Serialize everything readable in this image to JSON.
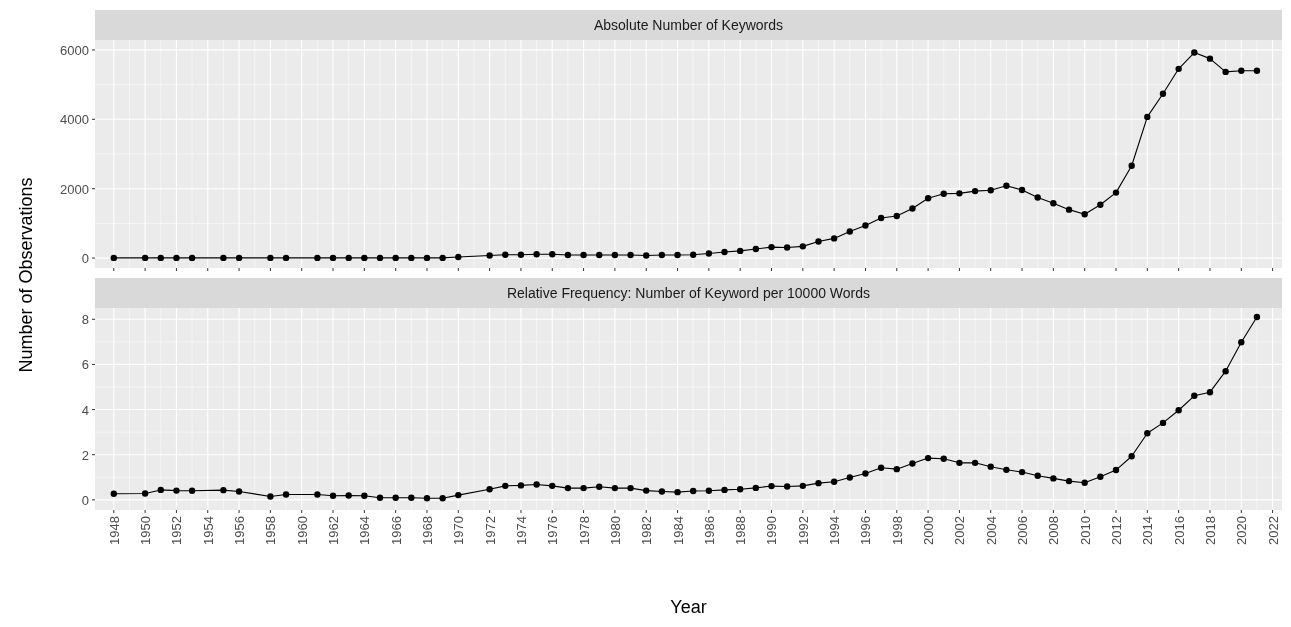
{
  "chart_data": [
    {
      "type": "line",
      "title": "Absolute Number of Keywords",
      "ylabel": "Number of Observations",
      "x": [
        1948,
        1950,
        1951,
        1952,
        1953,
        1955,
        1956,
        1958,
        1959,
        1961,
        1962,
        1963,
        1964,
        1965,
        1966,
        1967,
        1968,
        1969,
        1970,
        1972,
        1973,
        1974,
        1975,
        1976,
        1977,
        1978,
        1979,
        1980,
        1981,
        1982,
        1983,
        1984,
        1985,
        1986,
        1987,
        1988,
        1989,
        1990,
        1991,
        1992,
        1993,
        1994,
        1995,
        1996,
        1997,
        1998,
        1999,
        2000,
        2001,
        2002,
        2003,
        2004,
        2005,
        2006,
        2007,
        2008,
        2009,
        2010,
        2011,
        2012,
        2013,
        2014,
        2015,
        2016,
        2017,
        2018,
        2019,
        2020,
        2021
      ],
      "series": [
        {
          "color": "#000000",
          "values": [
            5,
            5,
            5,
            5,
            5,
            5,
            5,
            5,
            5,
            5,
            5,
            5,
            5,
            5,
            5,
            5,
            5,
            5,
            30,
            76,
            98,
            98,
            109,
            109,
            87,
            87,
            87,
            87,
            87,
            76,
            87,
            87,
            98,
            131,
            175,
            207,
            262,
            316,
            305,
            338,
            480,
            567,
            764,
            938,
            1156,
            1211,
            1429,
            1724,
            1855,
            1866,
            1931,
            1953,
            2084,
            1964,
            1746,
            1582,
            1396,
            1265,
            1538,
            1887,
            2662,
            4069,
            4735,
            5455,
            5924,
            5749,
            5367,
            5400,
            5400
          ]
        }
      ],
      "xlim": [
        1946.8,
        2022.6
      ],
      "xticks": [
        1948,
        1950,
        1952,
        1954,
        1956,
        1958,
        1960,
        1962,
        1964,
        1966,
        1968,
        1970,
        1972,
        1974,
        1976,
        1978,
        1980,
        1982,
        1984,
        1986,
        1988,
        1990,
        1992,
        1994,
        1996,
        1998,
        2000,
        2002,
        2004,
        2006,
        2008,
        2010,
        2012,
        2014,
        2016,
        2018,
        2020,
        2022
      ],
      "ylim": [
        -286,
        6286
      ],
      "yticks": [
        0,
        2000,
        4000,
        6000
      ],
      "grid": true,
      "marker": "circle",
      "line_style": "solid",
      "tick_labels": "y"
    },
    {
      "type": "line",
      "title": "Relative Frequency: Number of Keyword per 10000 Words",
      "xlabel": "Year",
      "x": [
        1948,
        1950,
        1951,
        1952,
        1953,
        1955,
        1956,
        1958,
        1959,
        1961,
        1962,
        1963,
        1964,
        1965,
        1966,
        1967,
        1968,
        1969,
        1970,
        1972,
        1973,
        1974,
        1975,
        1976,
        1977,
        1978,
        1979,
        1980,
        1981,
        1982,
        1983,
        1984,
        1985,
        1986,
        1987,
        1988,
        1989,
        1990,
        1991,
        1992,
        1993,
        1994,
        1995,
        1996,
        1997,
        1998,
        1999,
        2000,
        2001,
        2002,
        2003,
        2004,
        2005,
        2006,
        2007,
        2008,
        2009,
        2010,
        2011,
        2012,
        2013,
        2014,
        2015,
        2016,
        2017,
        2018,
        2019,
        2020,
        2021
      ],
      "series": [
        {
          "color": "#000000",
          "values": [
            0.27,
            0.28,
            0.44,
            0.41,
            0.4,
            0.43,
            0.37,
            0.15,
            0.24,
            0.24,
            0.18,
            0.19,
            0.18,
            0.09,
            0.09,
            0.09,
            0.07,
            0.07,
            0.21,
            0.47,
            0.62,
            0.64,
            0.68,
            0.62,
            0.52,
            0.52,
            0.58,
            0.52,
            0.52,
            0.41,
            0.37,
            0.34,
            0.39,
            0.4,
            0.44,
            0.47,
            0.53,
            0.61,
            0.59,
            0.62,
            0.74,
            0.8,
            0.99,
            1.17,
            1.42,
            1.36,
            1.61,
            1.85,
            1.82,
            1.64,
            1.64,
            1.47,
            1.33,
            1.23,
            1.07,
            0.95,
            0.83,
            0.76,
            1.02,
            1.32,
            1.93,
            2.95,
            3.41,
            3.97,
            4.61,
            4.77,
            5.7,
            6.98,
            8.1
          ]
        }
      ],
      "xlim": [
        1946.8,
        2022.6
      ],
      "xticks": [
        1948,
        1950,
        1952,
        1954,
        1956,
        1958,
        1960,
        1962,
        1964,
        1966,
        1968,
        1970,
        1972,
        1974,
        1976,
        1978,
        1980,
        1982,
        1984,
        1986,
        1988,
        1990,
        1992,
        1994,
        1996,
        1998,
        2000,
        2002,
        2004,
        2006,
        2008,
        2010,
        2012,
        2014,
        2016,
        2018,
        2020,
        2022
      ],
      "ylim": [
        -0.45,
        8.5
      ],
      "yticks": [
        0,
        2,
        4,
        6,
        8
      ],
      "grid": true,
      "marker": "circle",
      "line_style": "solid"
    }
  ]
}
